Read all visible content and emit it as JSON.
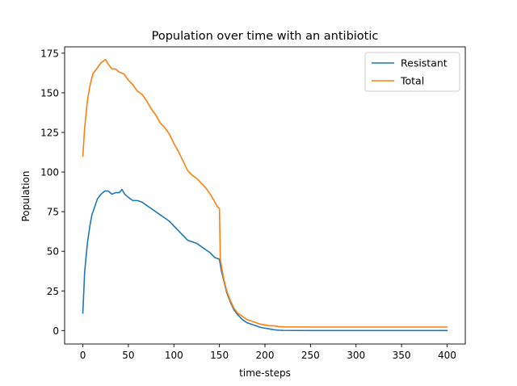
{
  "chart_data": {
    "type": "line",
    "title": "Population over time with an antibiotic",
    "xlabel": "time-steps",
    "ylabel": "Population",
    "xlim": [
      -20,
      420
    ],
    "ylim": [
      -8.5,
      179
    ],
    "xticks": [
      0,
      50,
      100,
      150,
      200,
      250,
      300,
      350,
      400
    ],
    "yticks": [
      0,
      25,
      50,
      75,
      100,
      125,
      150,
      175
    ],
    "grid": false,
    "legend_position": "top-right",
    "series": [
      {
        "name": "Resistant",
        "color": "#1f77b4",
        "points": [
          [
            0,
            11
          ],
          [
            2,
            37
          ],
          [
            5,
            55
          ],
          [
            8,
            67
          ],
          [
            10,
            73
          ],
          [
            13,
            78
          ],
          [
            16,
            83
          ],
          [
            20,
            86
          ],
          [
            24,
            88
          ],
          [
            28,
            88
          ],
          [
            32,
            86
          ],
          [
            36,
            87
          ],
          [
            40,
            87
          ],
          [
            43,
            89
          ],
          [
            46,
            86
          ],
          [
            50,
            84
          ],
          [
            55,
            82
          ],
          [
            60,
            82
          ],
          [
            65,
            81
          ],
          [
            70,
            79
          ],
          [
            75,
            77
          ],
          [
            80,
            75
          ],
          [
            85,
            73
          ],
          [
            90,
            71
          ],
          [
            95,
            69
          ],
          [
            100,
            66
          ],
          [
            105,
            63
          ],
          [
            110,
            60
          ],
          [
            115,
            57
          ],
          [
            120,
            56
          ],
          [
            125,
            55
          ],
          [
            130,
            53
          ],
          [
            135,
            51
          ],
          [
            140,
            49
          ],
          [
            145,
            46
          ],
          [
            150,
            45
          ],
          [
            152,
            38
          ],
          [
            155,
            31
          ],
          [
            158,
            24
          ],
          [
            162,
            18
          ],
          [
            166,
            13
          ],
          [
            170,
            10
          ],
          [
            175,
            7
          ],
          [
            180,
            5
          ],
          [
            185,
            4
          ],
          [
            190,
            3
          ],
          [
            195,
            2
          ],
          [
            200,
            1.5
          ],
          [
            205,
            1
          ],
          [
            210,
            0.5
          ],
          [
            215,
            0.2
          ],
          [
            220,
            0.1
          ],
          [
            250,
            0
          ],
          [
            300,
            0
          ],
          [
            350,
            0
          ],
          [
            400,
            0
          ]
        ]
      },
      {
        "name": "Total",
        "color": "#ff7f0e",
        "points": [
          [
            0,
            110
          ],
          [
            2,
            128
          ],
          [
            5,
            145
          ],
          [
            8,
            155
          ],
          [
            11,
            162
          ],
          [
            15,
            165
          ],
          [
            20,
            169
          ],
          [
            25,
            171
          ],
          [
            28,
            168
          ],
          [
            32,
            165
          ],
          [
            36,
            165
          ],
          [
            40,
            163
          ],
          [
            45,
            162
          ],
          [
            50,
            158
          ],
          [
            55,
            155
          ],
          [
            60,
            151
          ],
          [
            65,
            149
          ],
          [
            70,
            145
          ],
          [
            75,
            140
          ],
          [
            80,
            136
          ],
          [
            85,
            131
          ],
          [
            90,
            128
          ],
          [
            95,
            124
          ],
          [
            100,
            118
          ],
          [
            105,
            113
          ],
          [
            110,
            107
          ],
          [
            115,
            101
          ],
          [
            120,
            98
          ],
          [
            125,
            96
          ],
          [
            130,
            93
          ],
          [
            135,
            90
          ],
          [
            140,
            86
          ],
          [
            145,
            81
          ],
          [
            148,
            78
          ],
          [
            150,
            77
          ],
          [
            151,
            45
          ],
          [
            153,
            38
          ],
          [
            155,
            32
          ],
          [
            158,
            25
          ],
          [
            162,
            19
          ],
          [
            166,
            14
          ],
          [
            170,
            11
          ],
          [
            175,
            9
          ],
          [
            180,
            7
          ],
          [
            185,
            6
          ],
          [
            190,
            5
          ],
          [
            195,
            4
          ],
          [
            200,
            3.5
          ],
          [
            205,
            3
          ],
          [
            210,
            3
          ],
          [
            215,
            2.5
          ],
          [
            220,
            2.3
          ],
          [
            250,
            2.2
          ],
          [
            300,
            2.2
          ],
          [
            350,
            2.2
          ],
          [
            400,
            2.2
          ]
        ]
      }
    ]
  }
}
